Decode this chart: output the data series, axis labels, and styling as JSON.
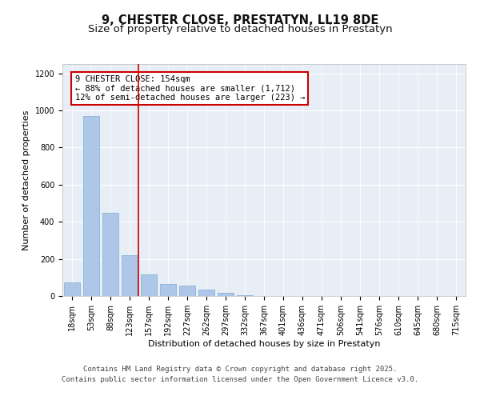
{
  "title1": "9, CHESTER CLOSE, PRESTATYN, LL19 8DE",
  "title2": "Size of property relative to detached houses in Prestatyn",
  "xlabel": "Distribution of detached houses by size in Prestatyn",
  "ylabel": "Number of detached properties",
  "categories": [
    "18sqm",
    "53sqm",
    "88sqm",
    "123sqm",
    "157sqm",
    "192sqm",
    "227sqm",
    "262sqm",
    "297sqm",
    "332sqm",
    "367sqm",
    "401sqm",
    "436sqm",
    "471sqm",
    "506sqm",
    "541sqm",
    "576sqm",
    "610sqm",
    "645sqm",
    "680sqm",
    "715sqm"
  ],
  "values": [
    75,
    970,
    450,
    220,
    115,
    65,
    55,
    35,
    18,
    3,
    2,
    1,
    0,
    0,
    0,
    0,
    0,
    0,
    0,
    0,
    0
  ],
  "bar_color": "#aec6e8",
  "bar_edge_color": "#7aadd4",
  "vline_x_index": 3.47,
  "vline_color": "#cc0000",
  "annotation_line1": "9 CHESTER CLOSE: 154sqm",
  "annotation_line2": "← 88% of detached houses are smaller (1,712)",
  "annotation_line3": "12% of semi-detached houses are larger (223) →",
  "annotation_box_color": "#cc0000",
  "ylim": [
    0,
    1250
  ],
  "yticks": [
    0,
    200,
    400,
    600,
    800,
    1000,
    1200
  ],
  "bg_color": "#e8eef5",
  "footer1": "Contains HM Land Registry data © Crown copyright and database right 2025.",
  "footer2": "Contains public sector information licensed under the Open Government Licence v3.0.",
  "title_fontsize": 10.5,
  "subtitle_fontsize": 9.5,
  "label_fontsize": 8,
  "tick_fontsize": 7,
  "footer_fontsize": 6.5,
  "annot_fontsize": 7.5
}
